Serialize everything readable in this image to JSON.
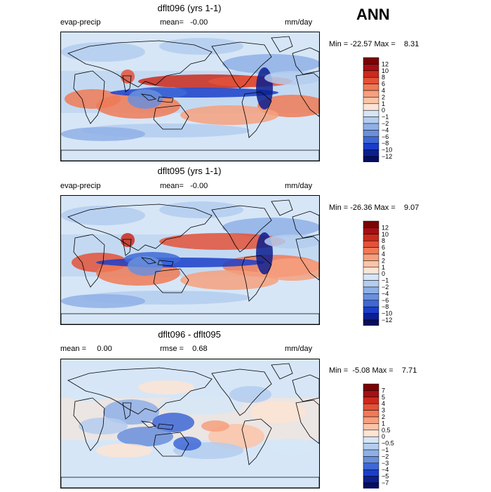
{
  "season": "ANN",
  "panels": [
    {
      "title": "dflt096 (yrs 1-1)",
      "left": "evap-precip",
      "center": "mean=   -0.00",
      "right": "mm/day",
      "minmax": "Min = -22.57 Max =    8.31",
      "colorbar": [
        "12",
        "10",
        "8",
        "6",
        "4",
        "2",
        "1",
        "0",
        "-1",
        "-2",
        "-4",
        "-6",
        "-8",
        "-10",
        "-12"
      ]
    },
    {
      "title": "dflt095 (yrs 1-1)",
      "left": "evap-precip",
      "center": "mean=   -0.00",
      "right": "mm/day",
      "minmax": "Min = -26.36 Max =    9.07",
      "colorbar": [
        "12",
        "10",
        "8",
        "6",
        "4",
        "2",
        "1",
        "0",
        "-1",
        "-2",
        "-4",
        "-6",
        "-8",
        "-10",
        "-12"
      ]
    },
    {
      "title": "dflt096 - dflt095",
      "left": "mean =     0.00",
      "center": "rmse =    0.68",
      "right": "mm/day",
      "minmax": "Min =  -5.08 Max =    7.71",
      "colorbar": [
        "7",
        "5",
        "4",
        "3",
        "2",
        "1",
        "0.5",
        "0",
        "-0.5",
        "-1",
        "-2",
        "-3",
        "-4",
        "-5",
        "-7"
      ]
    }
  ],
  "colors": {
    "scale": [
      "#7a0403",
      "#a50f15",
      "#cb2a1c",
      "#e3523a",
      "#f07a56",
      "#f6a07e",
      "#fbc4a8",
      "#fde4d4",
      "#d6e6f7",
      "#b4cdef",
      "#8fb0e6",
      "#6a8fdc",
      "#3f68d6",
      "#1b3ec9",
      "#0c1f8f",
      "#070d5e"
    ]
  }
}
